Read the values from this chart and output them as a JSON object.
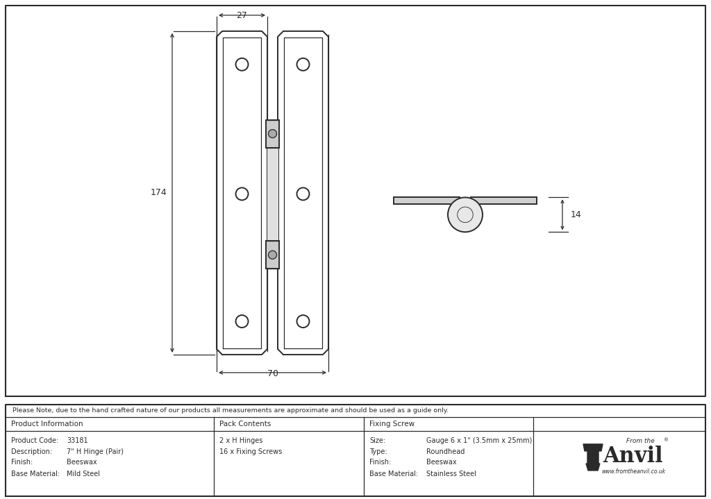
{
  "bg_color": "#ffffff",
  "line_color": "#2a2a2a",
  "note_text": "Please Note, due to the hand crafted nature of our products all measurements are approximate and should be used as a guide only.",
  "table_data": {
    "col1_header": "Product Information",
    "col2_header": "Pack Contents",
    "col3_header": "Fixing Screw",
    "col4_header": "",
    "col1_rows": [
      [
        "Product Code:",
        "33181"
      ],
      [
        "Description:",
        "7\" H Hinge (Pair)"
      ],
      [
        "Finish:",
        "Beeswax"
      ],
      [
        "Base Material:",
        "Mild Steel"
      ]
    ],
    "col2_rows": [
      "2 x H Hinges",
      "16 x Fixing Screws"
    ],
    "col3_rows": [
      [
        "Size:",
        "Gauge 6 x 1\" (3.5mm x 25mm)"
      ],
      [
        "Type:",
        "Roundhead"
      ],
      [
        "Finish:",
        "Beeswax"
      ],
      [
        "Base Material:",
        "Stainless Steel"
      ]
    ]
  },
  "dim_70": "70",
  "dim_174": "174",
  "dim_27": "27",
  "dim_14": "14"
}
